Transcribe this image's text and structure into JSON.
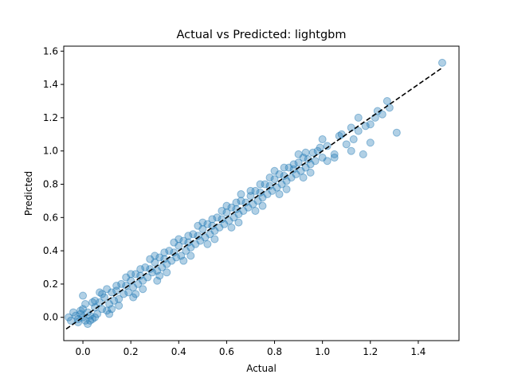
{
  "chart_data": {
    "type": "scatter",
    "title": "Actual vs Predicted: lightgbm",
    "xlabel": "Actual",
    "ylabel": "Predicted",
    "xlim": [
      -0.08,
      1.57
    ],
    "ylim": [
      -0.14,
      1.63
    ],
    "x_ticks": [
      0.0,
      0.2,
      0.4,
      0.6,
      0.8,
      1.0,
      1.2,
      1.4
    ],
    "x_tick_labels": [
      "0.0",
      "0.2",
      "0.4",
      "0.6",
      "0.8",
      "1.0",
      "1.2",
      "1.4"
    ],
    "y_ticks": [
      0.0,
      0.2,
      0.4,
      0.6,
      0.8,
      1.0,
      1.2,
      1.4,
      1.6
    ],
    "y_tick_labels": [
      "0.0",
      "0.2",
      "0.4",
      "0.6",
      "0.8",
      "1.0",
      "1.2",
      "1.4",
      "1.6"
    ],
    "grid": false,
    "legend": "none",
    "point_color": "#1f77b4",
    "point_alpha": 0.35,
    "reference_line": {
      "from": [
        -0.07,
        -0.07
      ],
      "to": [
        1.5,
        1.5
      ],
      "color": "#000000",
      "style": "dashed"
    },
    "series": [
      {
        "points": [
          [
            -0.05,
            -0.02
          ],
          [
            -0.03,
            0.01
          ],
          [
            -0.02,
            -0.03
          ],
          [
            -0.01,
            0.02
          ],
          [
            0.0,
            0.0
          ],
          [
            0.01,
            -0.02
          ],
          [
            0.02,
            0.03
          ],
          [
            0.03,
            0.01
          ],
          [
            0.04,
            -0.01
          ],
          [
            0.05,
            0.06
          ],
          [
            -0.04,
            0.03
          ],
          [
            0.0,
            0.05
          ],
          [
            0.02,
            -0.04
          ],
          [
            0.06,
            0.02
          ],
          [
            0.07,
            0.09
          ],
          [
            -0.02,
            -0.01
          ],
          [
            0.01,
            0.08
          ],
          [
            0.03,
            -0.02
          ],
          [
            0.08,
            0.05
          ],
          [
            -0.06,
            0.0
          ],
          [
            0.0,
            0.13
          ],
          [
            0.05,
            0.1
          ],
          [
            0.1,
            0.04
          ],
          [
            0.09,
            0.12
          ],
          [
            0.11,
            0.08
          ],
          [
            0.12,
            0.15
          ],
          [
            0.13,
            0.1
          ],
          [
            0.14,
            0.16
          ],
          [
            0.15,
            0.11
          ],
          [
            0.16,
            0.2
          ],
          [
            0.17,
            0.14
          ],
          [
            0.18,
            0.19
          ],
          [
            0.19,
            0.15
          ],
          [
            0.2,
            0.22
          ],
          [
            0.21,
            0.18
          ],
          [
            0.22,
            0.26
          ],
          [
            0.23,
            0.2
          ],
          [
            0.24,
            0.25
          ],
          [
            0.25,
            0.22
          ],
          [
            0.26,
            0.3
          ],
          [
            0.27,
            0.24
          ],
          [
            0.28,
            0.29
          ],
          [
            0.29,
            0.27
          ],
          [
            0.3,
            0.33
          ],
          [
            0.31,
            0.28
          ],
          [
            0.32,
            0.36
          ],
          [
            0.33,
            0.3
          ],
          [
            0.34,
            0.35
          ],
          [
            0.35,
            0.32
          ],
          [
            0.36,
            0.4
          ],
          [
            0.37,
            0.34
          ],
          [
            0.38,
            0.39
          ],
          [
            0.39,
            0.36
          ],
          [
            0.4,
            0.43
          ],
          [
            0.41,
            0.37
          ],
          [
            0.42,
            0.46
          ],
          [
            0.43,
            0.4
          ],
          [
            0.44,
            0.45
          ],
          [
            0.45,
            0.42
          ],
          [
            0.46,
            0.5
          ],
          [
            0.47,
            0.44
          ],
          [
            0.48,
            0.49
          ],
          [
            0.49,
            0.46
          ],
          [
            0.5,
            0.53
          ],
          [
            0.51,
            0.48
          ],
          [
            0.52,
            0.56
          ],
          [
            0.53,
            0.5
          ],
          [
            0.54,
            0.55
          ],
          [
            0.55,
            0.52
          ],
          [
            0.56,
            0.6
          ],
          [
            0.57,
            0.54
          ],
          [
            0.58,
            0.59
          ],
          [
            0.59,
            0.56
          ],
          [
            0.6,
            0.63
          ],
          [
            0.61,
            0.58
          ],
          [
            0.62,
            0.66
          ],
          [
            0.63,
            0.6
          ],
          [
            0.64,
            0.65
          ],
          [
            0.65,
            0.62
          ],
          [
            0.66,
            0.7
          ],
          [
            0.67,
            0.64
          ],
          [
            0.68,
            0.69
          ],
          [
            0.69,
            0.66
          ],
          [
            0.7,
            0.73
          ],
          [
            0.71,
            0.68
          ],
          [
            0.72,
            0.76
          ],
          [
            0.73,
            0.7
          ],
          [
            0.74,
            0.75
          ],
          [
            0.75,
            0.72
          ],
          [
            0.76,
            0.8
          ],
          [
            0.77,
            0.74
          ],
          [
            0.78,
            0.79
          ],
          [
            0.79,
            0.76
          ],
          [
            0.8,
            0.83
          ],
          [
            0.81,
            0.78
          ],
          [
            0.82,
            0.86
          ],
          [
            0.83,
            0.8
          ],
          [
            0.84,
            0.85
          ],
          [
            0.85,
            0.82
          ],
          [
            0.86,
            0.9
          ],
          [
            0.87,
            0.84
          ],
          [
            0.88,
            0.89
          ],
          [
            0.89,
            0.86
          ],
          [
            0.9,
            0.93
          ],
          [
            0.91,
            0.88
          ],
          [
            0.92,
            0.96
          ],
          [
            0.93,
            0.9
          ],
          [
            0.94,
            0.95
          ],
          [
            0.95,
            0.92
          ],
          [
            0.96,
            0.99
          ],
          [
            0.97,
            0.94
          ],
          [
            0.98,
            1.0
          ],
          [
            1.0,
            0.96
          ],
          [
            1.02,
            1.03
          ],
          [
            1.05,
            0.98
          ],
          [
            1.08,
            1.1
          ],
          [
            1.1,
            1.04
          ],
          [
            1.13,
            1.07
          ],
          [
            1.15,
            1.12
          ],
          [
            1.18,
            1.15
          ],
          [
            1.2,
            1.16
          ],
          [
            1.22,
            1.2
          ],
          [
            1.25,
            1.22
          ],
          [
            1.27,
            1.3
          ],
          [
            1.31,
            1.11
          ],
          [
            1.5,
            1.53
          ],
          [
            1.0,
            1.07
          ],
          [
            0.9,
            0.98
          ],
          [
            0.8,
            0.88
          ],
          [
            0.7,
            0.76
          ],
          [
            0.6,
            0.67
          ],
          [
            0.5,
            0.57
          ],
          [
            0.4,
            0.47
          ],
          [
            0.3,
            0.37
          ],
          [
            0.2,
            0.26
          ],
          [
            0.1,
            0.17
          ],
          [
            0.07,
            0.15
          ],
          [
            0.12,
            0.05
          ],
          [
            0.22,
            0.14
          ],
          [
            0.32,
            0.25
          ],
          [
            0.42,
            0.34
          ],
          [
            0.52,
            0.44
          ],
          [
            0.62,
            0.54
          ],
          [
            0.72,
            0.64
          ],
          [
            0.82,
            0.74
          ],
          [
            0.92,
            0.84
          ],
          [
            1.02,
            0.94
          ],
          [
            1.12,
            1.0
          ],
          [
            1.17,
            0.98
          ],
          [
            1.2,
            1.05
          ],
          [
            1.28,
            1.26
          ],
          [
            1.23,
            1.24
          ],
          [
            1.15,
            1.2
          ],
          [
            1.12,
            1.14
          ],
          [
            1.07,
            1.09
          ],
          [
            0.88,
            0.92
          ],
          [
            0.78,
            0.84
          ],
          [
            0.66,
            0.74
          ],
          [
            0.58,
            0.64
          ],
          [
            0.48,
            0.55
          ],
          [
            0.38,
            0.45
          ],
          [
            0.28,
            0.35
          ],
          [
            0.18,
            0.24
          ],
          [
            0.08,
            0.14
          ],
          [
            0.05,
            0.0
          ],
          [
            0.15,
            0.07
          ],
          [
            0.25,
            0.17
          ],
          [
            0.35,
            0.27
          ],
          [
            0.45,
            0.37
          ],
          [
            0.55,
            0.47
          ],
          [
            0.65,
            0.57
          ],
          [
            0.75,
            0.67
          ],
          [
            0.85,
            0.77
          ],
          [
            0.95,
            0.87
          ],
          [
            1.05,
            0.96
          ],
          [
            0.99,
            1.02
          ],
          [
            0.93,
            0.99
          ],
          [
            0.84,
            0.9
          ],
          [
            0.74,
            0.8
          ],
          [
            0.64,
            0.69
          ],
          [
            0.54,
            0.59
          ],
          [
            0.44,
            0.49
          ],
          [
            0.34,
            0.39
          ],
          [
            0.24,
            0.29
          ],
          [
            0.14,
            0.19
          ],
          [
            0.04,
            0.09
          ],
          [
            -0.01,
            0.04
          ],
          [
            0.11,
            0.02
          ],
          [
            0.21,
            0.12
          ],
          [
            0.31,
            0.22
          ]
        ]
      }
    ]
  }
}
